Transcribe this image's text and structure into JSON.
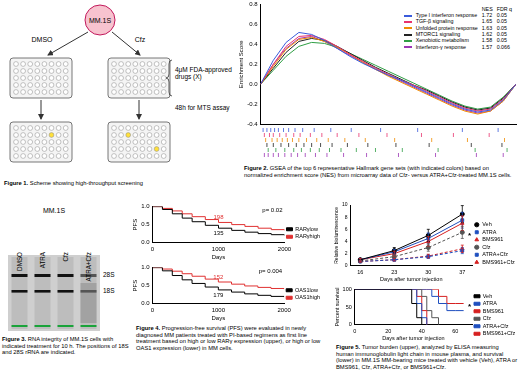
{
  "scheme": {
    "cell": "MM.1S",
    "arms": [
      "DMSO",
      "Cfz"
    ],
    "drugs": "4μM FDA-approved drugs (X)",
    "assay": "48h for MTS assay"
  },
  "gel": {
    "title": "MM.1S",
    "lanes": [
      "DMSO",
      "ATRA",
      "Cfz",
      "ATRA+Cfz"
    ],
    "markers": [
      "28S",
      "18S"
    ]
  },
  "captions": [
    {
      "label": "Figure 1.",
      "text": "Scheme showing high-throughput screening"
    },
    {
      "label": "Figure 2.",
      "text": "GSEA of the top 6 representative Hallmark gene sets (with indicated colors) based on normalized enrichment score (NES) from microarray data of Cfz- versus ATRA+Cfz-treated MM.1S cells."
    },
    {
      "label": "Figure 3.",
      "text": "RNA integrity of MM.1S cells with indicated treatment for 10 h. The positions of 18S and 28S rRNA are indicated."
    },
    {
      "label": "Figure 4.",
      "text": "Progression-free survival (PFS) were evaluated in newly diagnosed MM patients treated with PI-based regimens as first line treatment based on high or low RARγ expression (upper), or high or low OAS1 expression (lower) in MM cells."
    },
    {
      "label": "Figure 5.",
      "text": "Tumor burden (upper), analyzed by ELISA measuring human immunoglobulin light chain in mouse plasma, and survival (lower) in MM.1S MM-bearing mice treated with vehicle (Veh), ATRA or BMS961, Cfz, ATRA+Cfz, or BMS961+Cfz."
    }
  ],
  "chart_data": [
    {
      "type": "line",
      "ylabel": "Enrichment Score",
      "x": [
        0,
        1,
        2,
        3,
        4,
        5,
        6,
        7,
        8,
        9,
        10,
        11,
        12,
        13,
        14,
        15,
        16,
        17,
        18,
        19,
        20
      ],
      "xlim": [
        0,
        20
      ],
      "ylim": [
        -0.4,
        0.8
      ],
      "yticks": [
        -0.4,
        -0.2,
        {
          "value": 0,
          "label": "0.0"
        },
        0.2,
        0.4,
        0.6,
        0.8
      ],
      "grid": false,
      "tick_labels": "y",
      "legend": "upper right",
      "columns": [
        "NES",
        "FDR q"
      ],
      "series": [
        {
          "name": "Type I interferon response",
          "color": "#3b5bdb",
          "nes": 1.72,
          "fdr_q": 0.05,
          "values": [
            0,
            0.24,
            0.42,
            0.52,
            0.5,
            0.44,
            0.36,
            0.28,
            0.21,
            0.15,
            0.09,
            0.04,
            -0.02,
            -0.08,
            -0.14,
            -0.2,
            -0.25,
            -0.28,
            -0.26,
            -0.16,
            0
          ],
          "hits": [
            0.2,
            0.5,
            0.8,
            1.1,
            1.4,
            1.8,
            2.2,
            2.7,
            3.3,
            4.2,
            5.5,
            7.1,
            9.4,
            12.3,
            15.8,
            18.6
          ]
        },
        {
          "name": "TGF-β signaling",
          "color": "#e8336e",
          "nes": 1.65,
          "fdr_q": 0.05,
          "values": [
            0,
            0.2,
            0.38,
            0.48,
            0.49,
            0.45,
            0.38,
            0.3,
            0.23,
            0.16,
            0.1,
            0.04,
            -0.01,
            -0.07,
            -0.13,
            -0.19,
            -0.24,
            -0.27,
            -0.25,
            -0.15,
            0
          ],
          "hits": [
            0.3,
            0.7,
            1.0,
            1.5,
            2.0,
            2.6,
            3.1,
            3.9,
            4.8,
            6.0,
            7.7,
            9.9,
            12.6,
            15.1,
            17.9
          ]
        },
        {
          "name": "Unfolded protein response",
          "color": "#f08c00",
          "nes": 1.63,
          "fdr_q": 0.05,
          "values": [
            0,
            0.18,
            0.35,
            0.45,
            0.47,
            0.43,
            0.37,
            0.3,
            0.22,
            0.15,
            0.08,
            0.02,
            -0.04,
            -0.1,
            -0.16,
            -0.22,
            -0.27,
            -0.3,
            -0.27,
            -0.17,
            0
          ],
          "hits": [
            0.4,
            0.9,
            1.3,
            1.7,
            2.1,
            2.5,
            3.0,
            3.6,
            4.4,
            5.3,
            6.6,
            8.2,
            10.5,
            13.4,
            16.2,
            19.1
          ]
        },
        {
          "name": "MTORC1 signaling",
          "color": "#222222",
          "nes": 1.62,
          "fdr_q": 0.05,
          "values": [
            0,
            0.16,
            0.32,
            0.43,
            0.46,
            0.44,
            0.38,
            0.31,
            0.24,
            0.17,
            0.11,
            0.05,
            -0.01,
            -0.06,
            -0.12,
            -0.18,
            -0.23,
            -0.26,
            -0.24,
            -0.14,
            0
          ],
          "hits": [
            0.5,
            1.0,
            1.6,
            2.2,
            2.8,
            3.4,
            4.0,
            4.7,
            5.6,
            6.8,
            8.4,
            10.6,
            13.2,
            16.5,
            18.9
          ]
        },
        {
          "name": "Xenobiotic metabolism",
          "color": "#2f9e44",
          "nes": 1.58,
          "fdr_q": 0.05,
          "values": [
            0,
            0.14,
            0.28,
            0.38,
            0.42,
            0.41,
            0.37,
            0.31,
            0.25,
            0.19,
            0.13,
            0.07,
            0.01,
            -0.05,
            -0.11,
            -0.17,
            -0.22,
            -0.25,
            -0.23,
            -0.13,
            0
          ],
          "hits": [
            0.6,
            1.2,
            1.9,
            2.6,
            3.2,
            3.9,
            4.6,
            5.4,
            6.3,
            7.5,
            9.0,
            11.1,
            13.9,
            16.8,
            19.3
          ]
        },
        {
          "name": "Interferon-γ response",
          "color": "#9c36b5",
          "nes": 1.57,
          "fdr_q": 0.066,
          "values": [
            0,
            0.2,
            0.36,
            0.46,
            0.48,
            0.43,
            0.36,
            0.29,
            0.22,
            0.15,
            0.09,
            0.03,
            -0.03,
            -0.09,
            -0.15,
            -0.21,
            -0.26,
            -0.29,
            -0.27,
            -0.17,
            0
          ],
          "hits": [
            0.3,
            0.6,
            1.0,
            1.4,
            1.9,
            2.4,
            2.9,
            3.5,
            4.3,
            5.2,
            6.5,
            8.3,
            10.8,
            13.7,
            16.9,
            19.0
          ]
        }
      ]
    },
    {
      "type": "line",
      "ylabel": "PFS",
      "xlabel": "Days",
      "x": [
        0,
        150,
        300,
        450,
        600,
        800,
        1000,
        1200,
        1400,
        1600,
        1800,
        2000
      ],
      "xlim": [
        0,
        2000
      ],
      "xticks": [
        0,
        1000,
        2000
      ],
      "ylim": [
        0,
        1
      ],
      "yticks": [
        {
          "value": 0,
          "label": "0.0"
        },
        0.5,
        {
          "value": 1,
          "label": "1.0"
        }
      ],
      "grid": false,
      "line_style": "step",
      "legend": "right",
      "annotations": [
        "p= 0.02"
      ],
      "series": [
        {
          "name": "RARγlow",
          "color": "#000000",
          "n": 135,
          "values": [
            1,
            0.92,
            0.8,
            0.68,
            0.58,
            0.48,
            0.4,
            0.34,
            0.29,
            0.25,
            0.22,
            0.2
          ]
        },
        {
          "name": "RARγhigh",
          "color": "#e03131",
          "n": 198,
          "values": [
            1,
            0.95,
            0.88,
            0.8,
            0.72,
            0.64,
            0.56,
            0.5,
            0.45,
            0.4,
            0.36,
            0.34
          ]
        }
      ]
    },
    {
      "type": "line",
      "ylabel": "PFS",
      "xlabel": "Days",
      "x": [
        0,
        150,
        300,
        450,
        600,
        800,
        1000,
        1200,
        1400,
        1600,
        1800,
        2000
      ],
      "xlim": [
        0,
        2000
      ],
      "xticks": [
        0,
        1000,
        2000
      ],
      "ylim": [
        0,
        1
      ],
      "yticks": [
        {
          "value": 0,
          "label": "0.0"
        },
        0.5,
        {
          "value": 1,
          "label": "1.0"
        }
      ],
      "grid": false,
      "line_style": "step",
      "legend": "right",
      "annotations": [
        "p= 0.004"
      ],
      "series": [
        {
          "name": "OAS1low",
          "color": "#000000",
          "n": 179,
          "values": [
            1,
            0.91,
            0.78,
            0.66,
            0.56,
            0.46,
            0.38,
            0.32,
            0.27,
            0.23,
            0.2,
            0.18
          ]
        },
        {
          "name": "OAS1high",
          "color": "#e03131",
          "n": 152,
          "values": [
            1,
            0.96,
            0.9,
            0.83,
            0.76,
            0.68,
            0.6,
            0.54,
            0.49,
            0.45,
            0.42,
            0.4
          ]
        }
      ]
    },
    {
      "type": "line",
      "ylabel": "Relative bioluminescence",
      "xlabel": "Days after tumor injection",
      "x": [
        16,
        23,
        30,
        37
      ],
      "xlim": [
        14,
        39
      ],
      "xticks": [
        16,
        23,
        30,
        37
      ],
      "ylim": [
        0,
        10
      ],
      "yticks": [
        0,
        2,
        4,
        6,
        8,
        10
      ],
      "grid": false,
      "legend": "right",
      "annotations": [
        "*"
      ],
      "series": [
        {
          "name": "Veh",
          "color": "#000000",
          "marker": "circle",
          "line_style": "solid",
          "values": [
            1,
            2.5,
            5,
            8.5
          ],
          "errors": [
            0.2,
            0.5,
            1.0,
            1.4
          ]
        },
        {
          "name": "ATRA",
          "color": "#1f4fbf",
          "marker": "square",
          "line_style": "solid",
          "values": [
            1,
            2.3,
            4.5,
            7.5
          ],
          "errors": [
            0.2,
            0.4,
            0.9,
            1.3
          ]
        },
        {
          "name": "BMS961",
          "color": "#d62020",
          "marker": "triangle",
          "line_style": "solid",
          "values": [
            1,
            2,
            4,
            7
          ],
          "errors": [
            0.2,
            0.4,
            0.8,
            1.2
          ]
        },
        {
          "name": "Cfz",
          "color": "#555555",
          "marker": "circle",
          "line_style": "dashed",
          "values": [
            0.8,
            1.5,
            3,
            5.5
          ],
          "errors": [
            0.1,
            0.3,
            0.6,
            1.0
          ]
        },
        {
          "name": "ATRA+Cfz",
          "color": "#1f4fbf",
          "marker": "square",
          "line_style": "dashed",
          "values": [
            0.7,
            1,
            1.5,
            2.5
          ],
          "errors": [
            0.1,
            0.2,
            0.3,
            0.5
          ]
        },
        {
          "name": "BMS961+Cfz",
          "color": "#d62020",
          "marker": "triangle",
          "line_style": "dashed",
          "values": [
            0.7,
            1,
            1.6,
            2.8
          ],
          "errors": [
            0.1,
            0.2,
            0.3,
            0.6
          ]
        }
      ]
    },
    {
      "type": "line",
      "ylabel": "Percent survival",
      "xlabel": "Days after tumor injection",
      "x": [
        0,
        30,
        34,
        37,
        40,
        43,
        46,
        50,
        55,
        60,
        65
      ],
      "xlim": [
        0,
        70
      ],
      "xticks": [
        0,
        20,
        40,
        60
      ],
      "ylim": [
        0,
        100
      ],
      "yticks": [
        0,
        50,
        100
      ],
      "grid": false,
      "line_style": "step",
      "legend": "right",
      "annotations": [
        "*"
      ],
      "series": [
        {
          "name": "Veh",
          "color": "#000000",
          "values": [
            100,
            100,
            60,
            20,
            0,
            null,
            null,
            null,
            null,
            null,
            null
          ]
        },
        {
          "name": "ATRA",
          "color": "#1f4fbf",
          "values": [
            100,
            100,
            100,
            60,
            20,
            0,
            null,
            null,
            null,
            null,
            null
          ]
        },
        {
          "name": "BMS961",
          "color": "#d62020",
          "values": [
            100,
            100,
            100,
            80,
            40,
            0,
            null,
            null,
            null,
            null,
            null
          ]
        },
        {
          "name": "Cfz",
          "color": "#555555",
          "values": [
            100,
            100,
            100,
            100,
            80,
            40,
            20,
            0,
            null,
            null,
            null
          ]
        },
        {
          "name": "ATRA+Cfz",
          "color": "#1f4fbf",
          "values": [
            100,
            100,
            100,
            100,
            100,
            100,
            80,
            60,
            40,
            40,
            40
          ]
        },
        {
          "name": "BMS961+Cfz",
          "color": "#d62020",
          "values": [
            100,
            100,
            100,
            100,
            100,
            100,
            100,
            80,
            60,
            60,
            60
          ]
        }
      ]
    }
  ]
}
